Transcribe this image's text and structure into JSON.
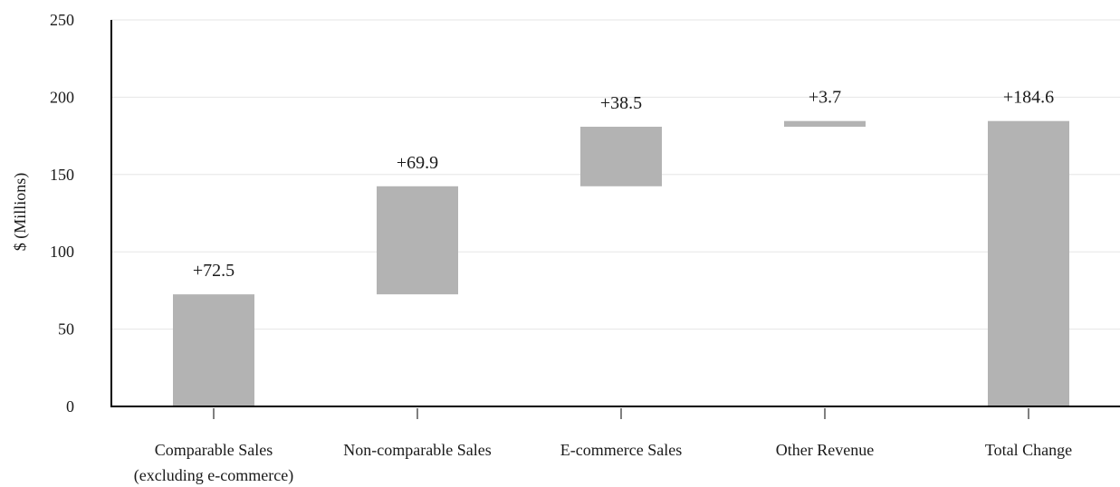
{
  "chart_data": {
    "type": "bar",
    "subtype": "waterfall",
    "categories": [
      [
        "Comparable Sales",
        "(excluding e-commerce)"
      ],
      [
        "Non-comparable Sales"
      ],
      [
        "E-commerce Sales"
      ],
      [
        "Other Revenue"
      ],
      [
        "Total Change"
      ]
    ],
    "values": [
      72.5,
      69.9,
      38.5,
      3.7,
      184.6
    ],
    "labels": [
      "+72.5",
      "+69.9",
      "+38.5",
      "+3.7",
      "+184.6"
    ],
    "is_total": [
      false,
      false,
      false,
      false,
      true
    ],
    "title": "",
    "xlabel": "",
    "ylabel": "$ (Millions)",
    "ylim": [
      0,
      250
    ],
    "yticks": [
      0,
      50,
      100,
      150,
      200,
      250
    ],
    "grid": true,
    "legend": "none",
    "bar_color": "#b3b3b3",
    "gridline_color": "#e6e6e6",
    "axis_color": "#000000"
  }
}
